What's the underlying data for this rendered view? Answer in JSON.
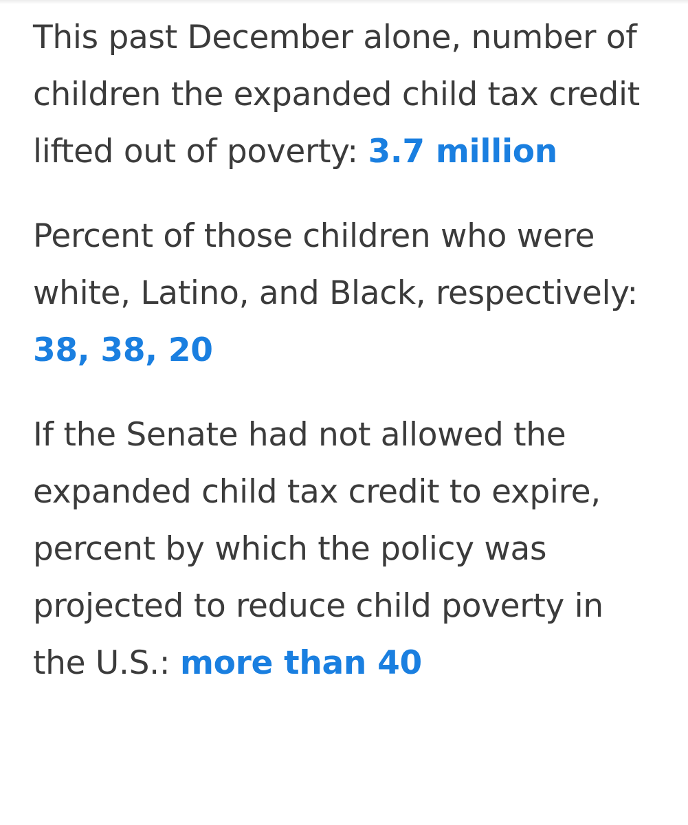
{
  "items": [
    {
      "question": "This past December alone, number of children the expanded child tax credit lifted out of poverty:",
      "answer": "3.7 million"
    },
    {
      "question": "Percent of those children who were white, Latino, and Black, respectively:",
      "answer": "38, 38, 20"
    },
    {
      "question": "If the Senate had not allowed the expanded child tax credit to expire, percent by which the policy was projected to reduce child poverty in the U.S.:",
      "answer": "more than 40"
    }
  ]
}
